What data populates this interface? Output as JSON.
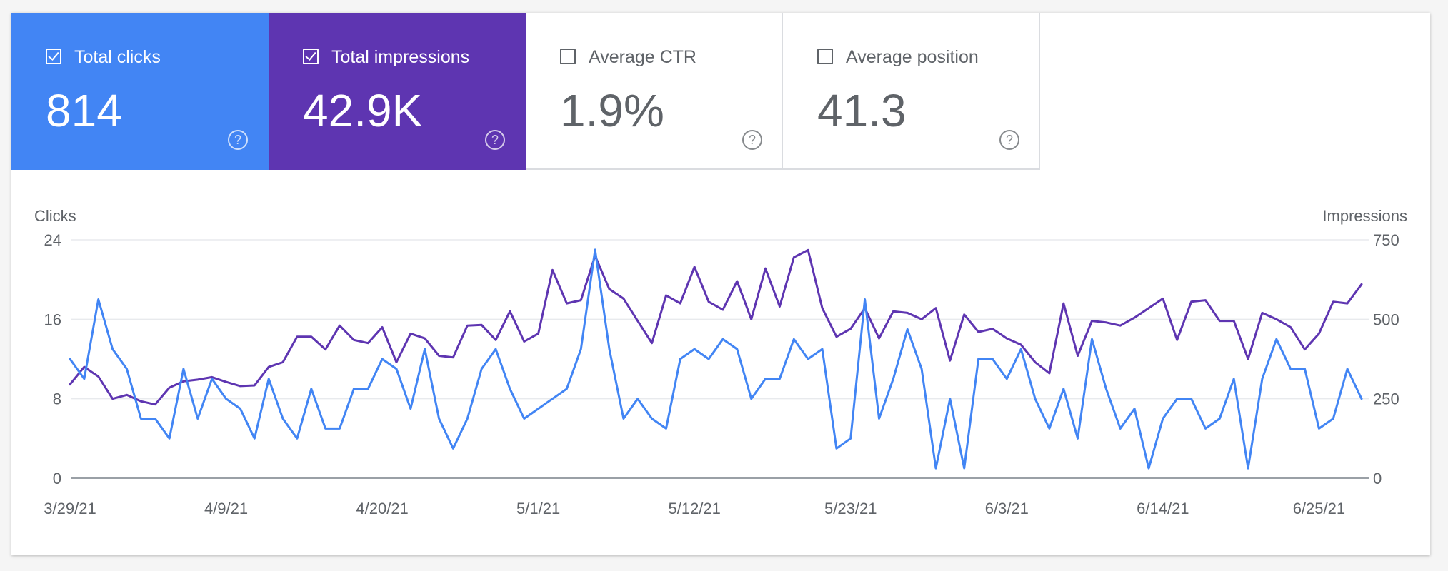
{
  "metrics": [
    {
      "label": "Total clicks",
      "value": "814",
      "checked": true,
      "color": "#4285f4"
    },
    {
      "label": "Total impressions",
      "value": "42.9K",
      "checked": true,
      "color": "#5e35b1"
    },
    {
      "label": "Average CTR",
      "value": "1.9%",
      "checked": false,
      "color": "#ffffff"
    },
    {
      "label": "Average position",
      "value": "41.3",
      "checked": false,
      "color": "#ffffff"
    }
  ],
  "help_icon": "question-circle-icon",
  "chart_data": {
    "type": "line",
    "left_axis_label": "Clicks",
    "right_axis_label": "Impressions",
    "left_ylim": [
      0,
      24
    ],
    "right_ylim": [
      0,
      750
    ],
    "left_ticks": [
      "24",
      "16",
      "8",
      "0"
    ],
    "right_ticks": [
      "750",
      "500",
      "250",
      "0"
    ],
    "x_tick_labels": [
      "3/29/21",
      "4/9/21",
      "4/20/21",
      "5/1/21",
      "5/12/21",
      "5/23/21",
      "6/3/21",
      "6/14/21",
      "6/25/21"
    ],
    "grid": true,
    "x_start": "3/29/21",
    "series": [
      {
        "name": "Clicks",
        "axis": "left",
        "color": "#4285f4",
        "values": [
          12,
          10,
          18,
          13,
          11,
          6,
          6,
          4,
          11,
          6,
          10,
          8,
          7,
          4,
          10,
          6,
          4,
          9,
          5,
          5,
          9,
          9,
          12,
          11,
          7,
          13,
          6,
          3,
          6,
          11,
          13,
          9,
          6,
          7,
          8,
          9,
          13,
          23,
          13,
          6,
          8,
          6,
          5,
          12,
          13,
          12,
          14,
          13,
          8,
          10,
          10,
          14,
          12,
          13,
          3,
          4,
          18,
          6,
          10,
          15,
          11,
          1,
          8,
          1,
          12,
          12,
          10,
          13,
          8,
          5,
          9,
          4,
          14,
          9,
          5,
          7,
          1,
          6,
          8,
          8,
          5,
          6,
          10,
          1,
          10,
          14,
          11,
          11,
          5,
          6,
          11,
          8
        ]
      },
      {
        "name": "Impressions",
        "axis": "right",
        "color": "#5e35b1",
        "values": [
          295,
          350,
          320,
          250,
          262,
          242,
          232,
          285,
          305,
          310,
          318,
          303,
          290,
          292,
          350,
          365,
          445,
          445,
          405,
          480,
          435,
          425,
          475,
          365,
          455,
          440,
          385,
          380,
          480,
          482,
          435,
          525,
          430,
          455,
          655,
          550,
          560,
          700,
          595,
          565,
          495,
          425,
          575,
          550,
          665,
          555,
          530,
          620,
          500,
          660,
          540,
          695,
          718,
          535,
          445,
          470,
          535,
          440,
          525,
          520,
          500,
          535,
          370,
          515,
          460,
          470,
          440,
          420,
          365,
          330,
          550,
          385,
          495,
          490,
          480,
          505,
          535,
          565,
          435,
          555,
          560,
          495,
          495,
          375,
          520,
          500,
          475,
          405,
          455,
          555,
          550,
          610
        ]
      }
    ]
  }
}
